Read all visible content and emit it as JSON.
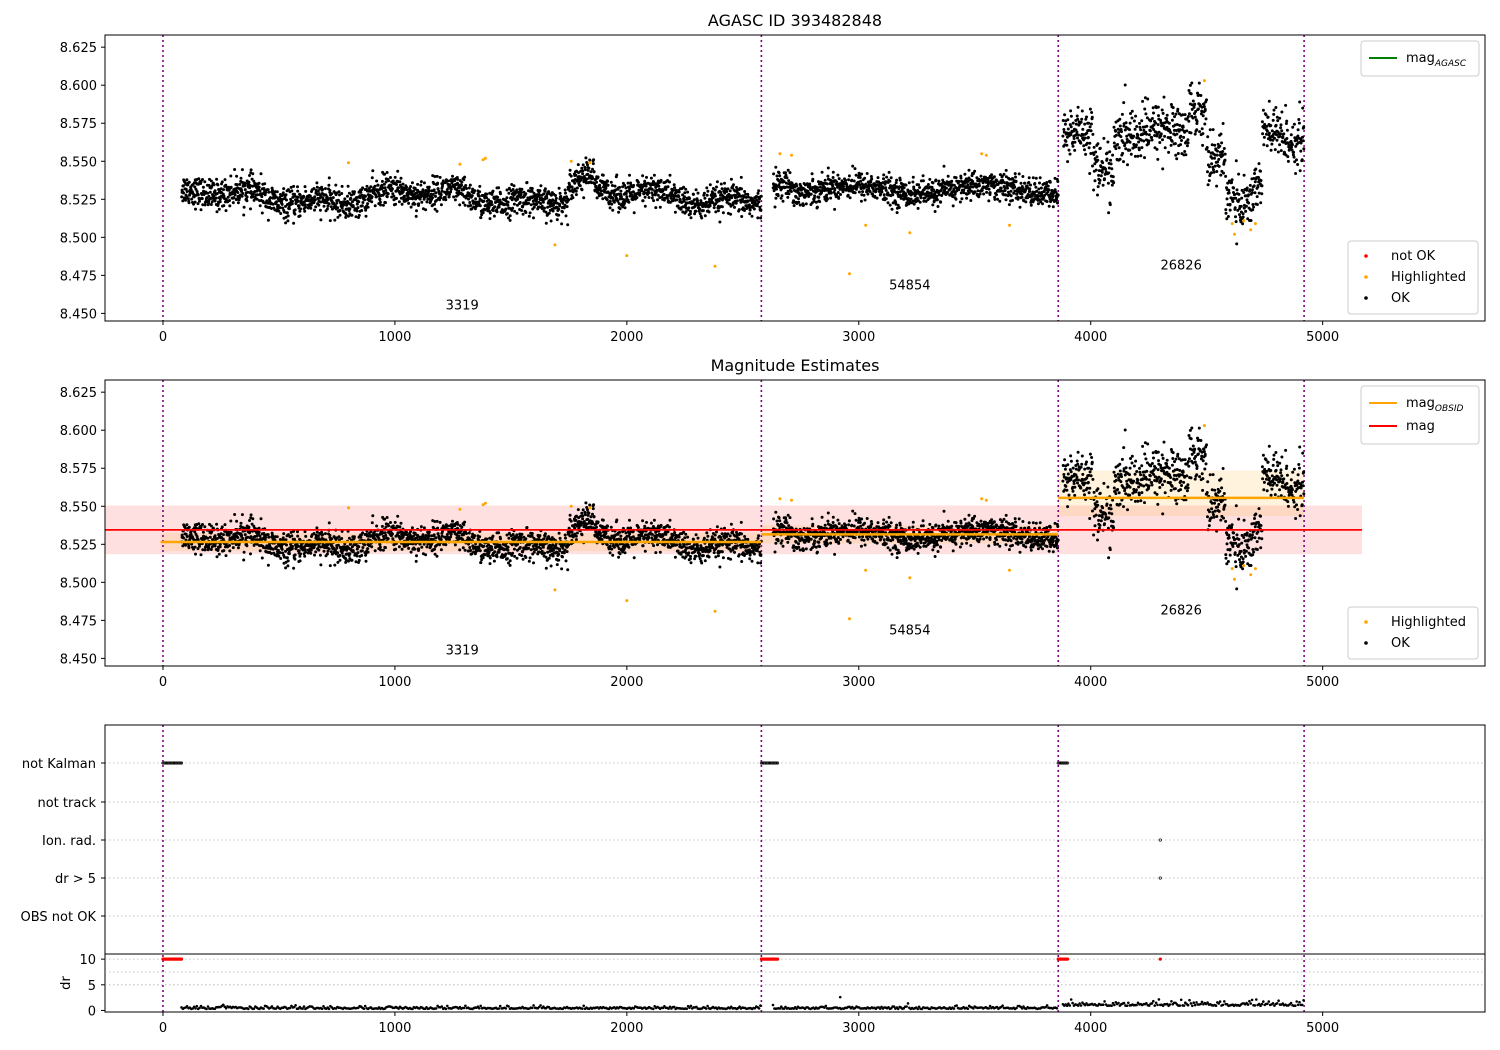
{
  "chart_data": [
    {
      "type": "scatter",
      "title": "AGASC ID 393482848",
      "xlim": [
        -250,
        5700
      ],
      "ylim": [
        8.445,
        8.633
      ],
      "xticks": [
        0,
        1000,
        2000,
        3000,
        4000,
        5000
      ],
      "yticks": [
        "8.450",
        "8.475",
        "8.500",
        "8.525",
        "8.550",
        "8.575",
        "8.600",
        "8.625"
      ],
      "obsid_boundaries": [
        0,
        2580,
        3860,
        4920
      ],
      "obsid_labels": [
        {
          "text": "3319",
          "x": 1290,
          "y": 8.456
        },
        {
          "text": "54854",
          "x": 3220,
          "y": 8.469
        },
        {
          "text": "26826",
          "x": 4390,
          "y": 8.482
        }
      ],
      "legend_top": [
        {
          "label": "mag",
          "sub": "AGASC",
          "color": "#008000"
        }
      ],
      "legend_bottom": [
        {
          "label": "not OK",
          "color": "#ff0000"
        },
        {
          "label": "Highlighted",
          "color": "#ffa500"
        },
        {
          "label": "OK",
          "color": "#000000"
        }
      ],
      "segments": [
        {
          "x_start": 80,
          "x_end": 2580,
          "base": 8.5265,
          "spread": 0.0065
        },
        {
          "x_start": 2630,
          "x_end": 3860,
          "base": 8.5315,
          "spread": 0.006
        },
        {
          "x_start": 3880,
          "x_end": 4920,
          "base": 8.558,
          "spread": 0.012
        }
      ],
      "highlighted_points": [
        {
          "x": 800,
          "y": 8.549
        },
        {
          "x": 1280,
          "y": 8.548
        },
        {
          "x": 1380,
          "y": 8.551
        },
        {
          "x": 1390,
          "y": 8.552
        },
        {
          "x": 1690,
          "y": 8.495
        },
        {
          "x": 1760,
          "y": 8.55
        },
        {
          "x": 1840,
          "y": 8.549
        },
        {
          "x": 2000,
          "y": 8.488
        },
        {
          "x": 2380,
          "y": 8.481
        },
        {
          "x": 2660,
          "y": 8.555
        },
        {
          "x": 2710,
          "y": 8.554
        },
        {
          "x": 2960,
          "y": 8.476
        },
        {
          "x": 3030,
          "y": 8.508
        },
        {
          "x": 3220,
          "y": 8.503
        },
        {
          "x": 3530,
          "y": 8.555
        },
        {
          "x": 3550,
          "y": 8.554
        },
        {
          "x": 3650,
          "y": 8.508
        },
        {
          "x": 4490,
          "y": 8.603
        },
        {
          "x": 4610,
          "y": 8.509
        },
        {
          "x": 4620,
          "y": 8.502
        },
        {
          "x": 4660,
          "y": 8.511
        },
        {
          "x": 4690,
          "y": 8.505
        },
        {
          "x": 4710,
          "y": 8.509
        }
      ]
    },
    {
      "type": "scatter",
      "title": "Magnitude Estimates",
      "xlim": [
        -250,
        5700
      ],
      "ylim": [
        8.445,
        8.633
      ],
      "xticks": [
        0,
        1000,
        2000,
        3000,
        4000,
        5000
      ],
      "yticks": [
        "8.450",
        "8.475",
        "8.500",
        "8.525",
        "8.550",
        "8.575",
        "8.600",
        "8.625"
      ],
      "obsid_boundaries": [
        0,
        2580,
        3860,
        4920
      ],
      "obsid_labels": [
        {
          "text": "3319",
          "x": 1290,
          "y": 8.456
        },
        {
          "text": "54854",
          "x": 3220,
          "y": 8.469
        },
        {
          "text": "26826",
          "x": 4390,
          "y": 8.482
        }
      ],
      "legend_top": [
        {
          "label": "mag",
          "sub": "OBSID",
          "color": "#ffa500"
        },
        {
          "label": "mag",
          "sub": "",
          "color": "#ff0000"
        }
      ],
      "legend_bottom": [
        {
          "label": "Highlighted",
          "color": "#ffa500"
        },
        {
          "label": "OK",
          "color": "#000000"
        }
      ],
      "mag_line": {
        "y": 8.5345,
        "band": [
          8.5185,
          8.5505
        ],
        "x_start": -250,
        "x_end": 5170,
        "color": "#ff0000"
      },
      "obsid_mags": [
        {
          "x_start": -10,
          "x_end": 2580,
          "mag": 8.5265,
          "band": [
            8.5205,
            8.5325
          ]
        },
        {
          "x_start": 2580,
          "x_end": 3860,
          "mag": 8.5315,
          "band": [
            8.5255,
            8.5375
          ]
        },
        {
          "x_start": 3860,
          "x_end": 4920,
          "mag": 8.5555,
          "band": [
            8.5435,
            8.5735
          ]
        }
      ]
    },
    {
      "type": "scatter",
      "title": "",
      "xlim": [
        -250,
        5700
      ],
      "xticks": [
        0,
        1000,
        2000,
        3000,
        4000,
        5000
      ],
      "flag_rows": [
        "not Kalman",
        "not track",
        "Ion. rad.",
        "dr > 5",
        "OBS not OK"
      ],
      "flag_points": {
        "not Kalman": [
          [
            0,
            80
          ],
          [
            2580,
            2650
          ],
          [
            3860,
            3900
          ]
        ],
        "Ion. rad.": [
          [
            4300,
            4300
          ]
        ],
        "dr > 5": [
          [
            4300,
            4300
          ]
        ]
      },
      "dr_ylabel": "dr",
      "dr_yticks": [
        "0",
        "5",
        "10"
      ],
      "dr_ylim": [
        -0.3,
        11
      ],
      "dr_flagged": [
        [
          0,
          80
        ],
        [
          2580,
          2650
        ],
        [
          3860,
          3900
        ],
        [
          4300,
          4300
        ]
      ]
    }
  ]
}
